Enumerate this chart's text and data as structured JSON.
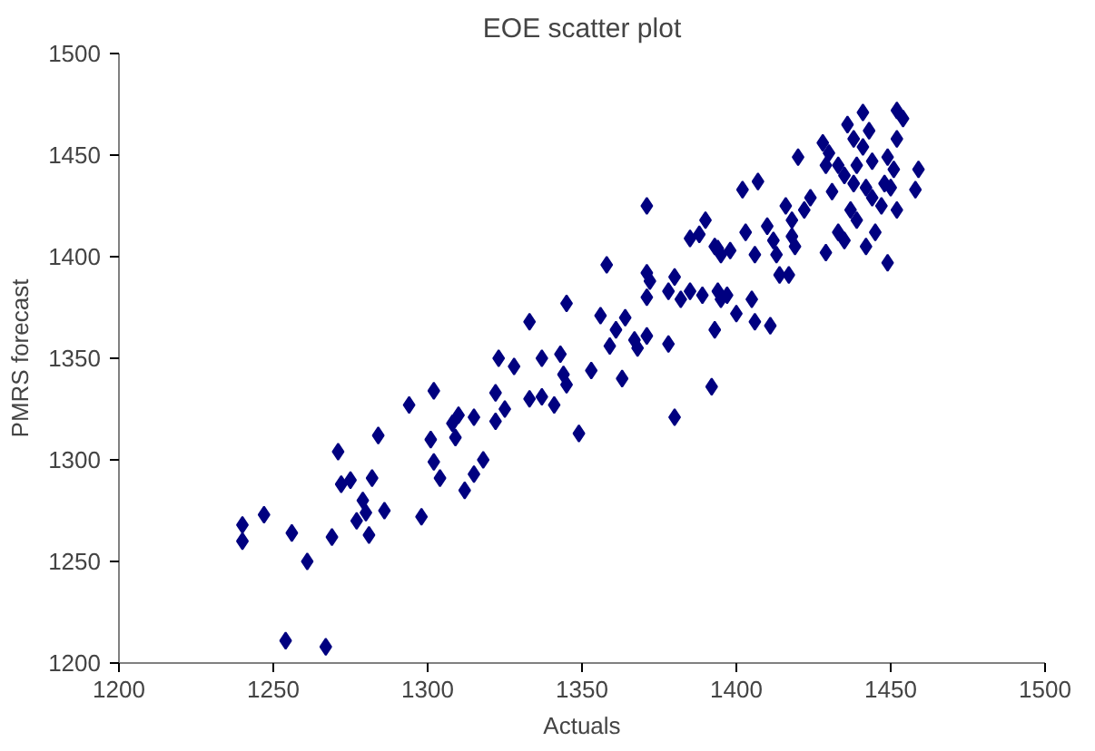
{
  "chart_data": {
    "type": "scatter",
    "title": "EOE scatter plot",
    "xlabel": "Actuals",
    "ylabel": "PMRS forecast",
    "marker": "diamond",
    "grid": false,
    "xlim": [
      1200,
      1500
    ],
    "xticks": [
      1200,
      1250,
      1300,
      1350,
      1400,
      1450,
      1500
    ],
    "ylim": [
      1200,
      1500
    ],
    "yticks": [
      1200,
      1250,
      1300,
      1350,
      1400,
      1450,
      1500
    ],
    "series": [
      {
        "color": "#000080",
        "x": [
          1240,
          1240,
          1247,
          1254,
          1256,
          1261,
          1267,
          1269,
          1271,
          1272,
          1275,
          1282,
          1279,
          1277,
          1281,
          1280,
          1284,
          1286,
          1294,
          1302,
          1301,
          1302,
          1304,
          1298,
          1308,
          1310,
          1309,
          1315,
          1312,
          1315,
          1318,
          1322,
          1325,
          1322,
          1323,
          1328,
          1333,
          1333,
          1337,
          1337,
          1341,
          1343,
          1344,
          1345,
          1345,
          1349,
          1353,
          1356,
          1358,
          1359,
          1363,
          1364,
          1361,
          1367,
          1368,
          1371,
          1371,
          1372,
          1371,
          1371,
          1378,
          1380,
          1378,
          1380,
          1382,
          1385,
          1388,
          1390,
          1392,
          1393,
          1394,
          1385,
          1389,
          1395,
          1393,
          1395,
          1394,
          1397,
          1400,
          1398,
          1403,
          1406,
          1402,
          1407,
          1405,
          1406,
          1411,
          1410,
          1412,
          1413,
          1414,
          1417,
          1416,
          1418,
          1419,
          1422,
          1424,
          1420,
          1418,
          1429,
          1428,
          1430,
          1429,
          1431,
          1433,
          1435,
          1436,
          1438,
          1439,
          1441,
          1443,
          1435,
          1438,
          1442,
          1439,
          1437,
          1444,
          1445,
          1449,
          1447,
          1450,
          1452,
          1449,
          1452,
          1454,
          1452,
          1451,
          1444,
          1448,
          1459,
          1458,
          1441,
          1433,
          1442
        ],
        "values": [
          1268,
          1260,
          1273,
          1211,
          1264,
          1250,
          1208,
          1262,
          1304,
          1288,
          1290,
          1291,
          1280,
          1270,
          1263,
          1274,
          1312,
          1275,
          1327,
          1334,
          1310,
          1299,
          1291,
          1272,
          1318,
          1322,
          1311,
          1321,
          1285,
          1293,
          1300,
          1319,
          1325,
          1333,
          1350,
          1346,
          1368,
          1330,
          1350,
          1331,
          1327,
          1352,
          1342,
          1377,
          1337,
          1313,
          1344,
          1371,
          1396,
          1356,
          1340,
          1370,
          1364,
          1359,
          1355,
          1425,
          1392,
          1388,
          1380,
          1361,
          1357,
          1321,
          1383,
          1390,
          1379,
          1409,
          1411,
          1418,
          1336,
          1364,
          1404,
          1383,
          1381,
          1379,
          1405,
          1401,
          1383,
          1381,
          1372,
          1403,
          1412,
          1401,
          1433,
          1437,
          1379,
          1368,
          1366,
          1415,
          1408,
          1401,
          1391,
          1391,
          1425,
          1418,
          1405,
          1423,
          1429,
          1449,
          1410,
          1402,
          1456,
          1451,
          1445,
          1432,
          1412,
          1408,
          1465,
          1458,
          1445,
          1471,
          1462,
          1440,
          1436,
          1434,
          1418,
          1423,
          1447,
          1412,
          1397,
          1425,
          1434,
          1423,
          1449,
          1472,
          1468,
          1458,
          1443,
          1429,
          1436,
          1443,
          1433,
          1454,
          1445,
          1405
        ]
      }
    ]
  }
}
